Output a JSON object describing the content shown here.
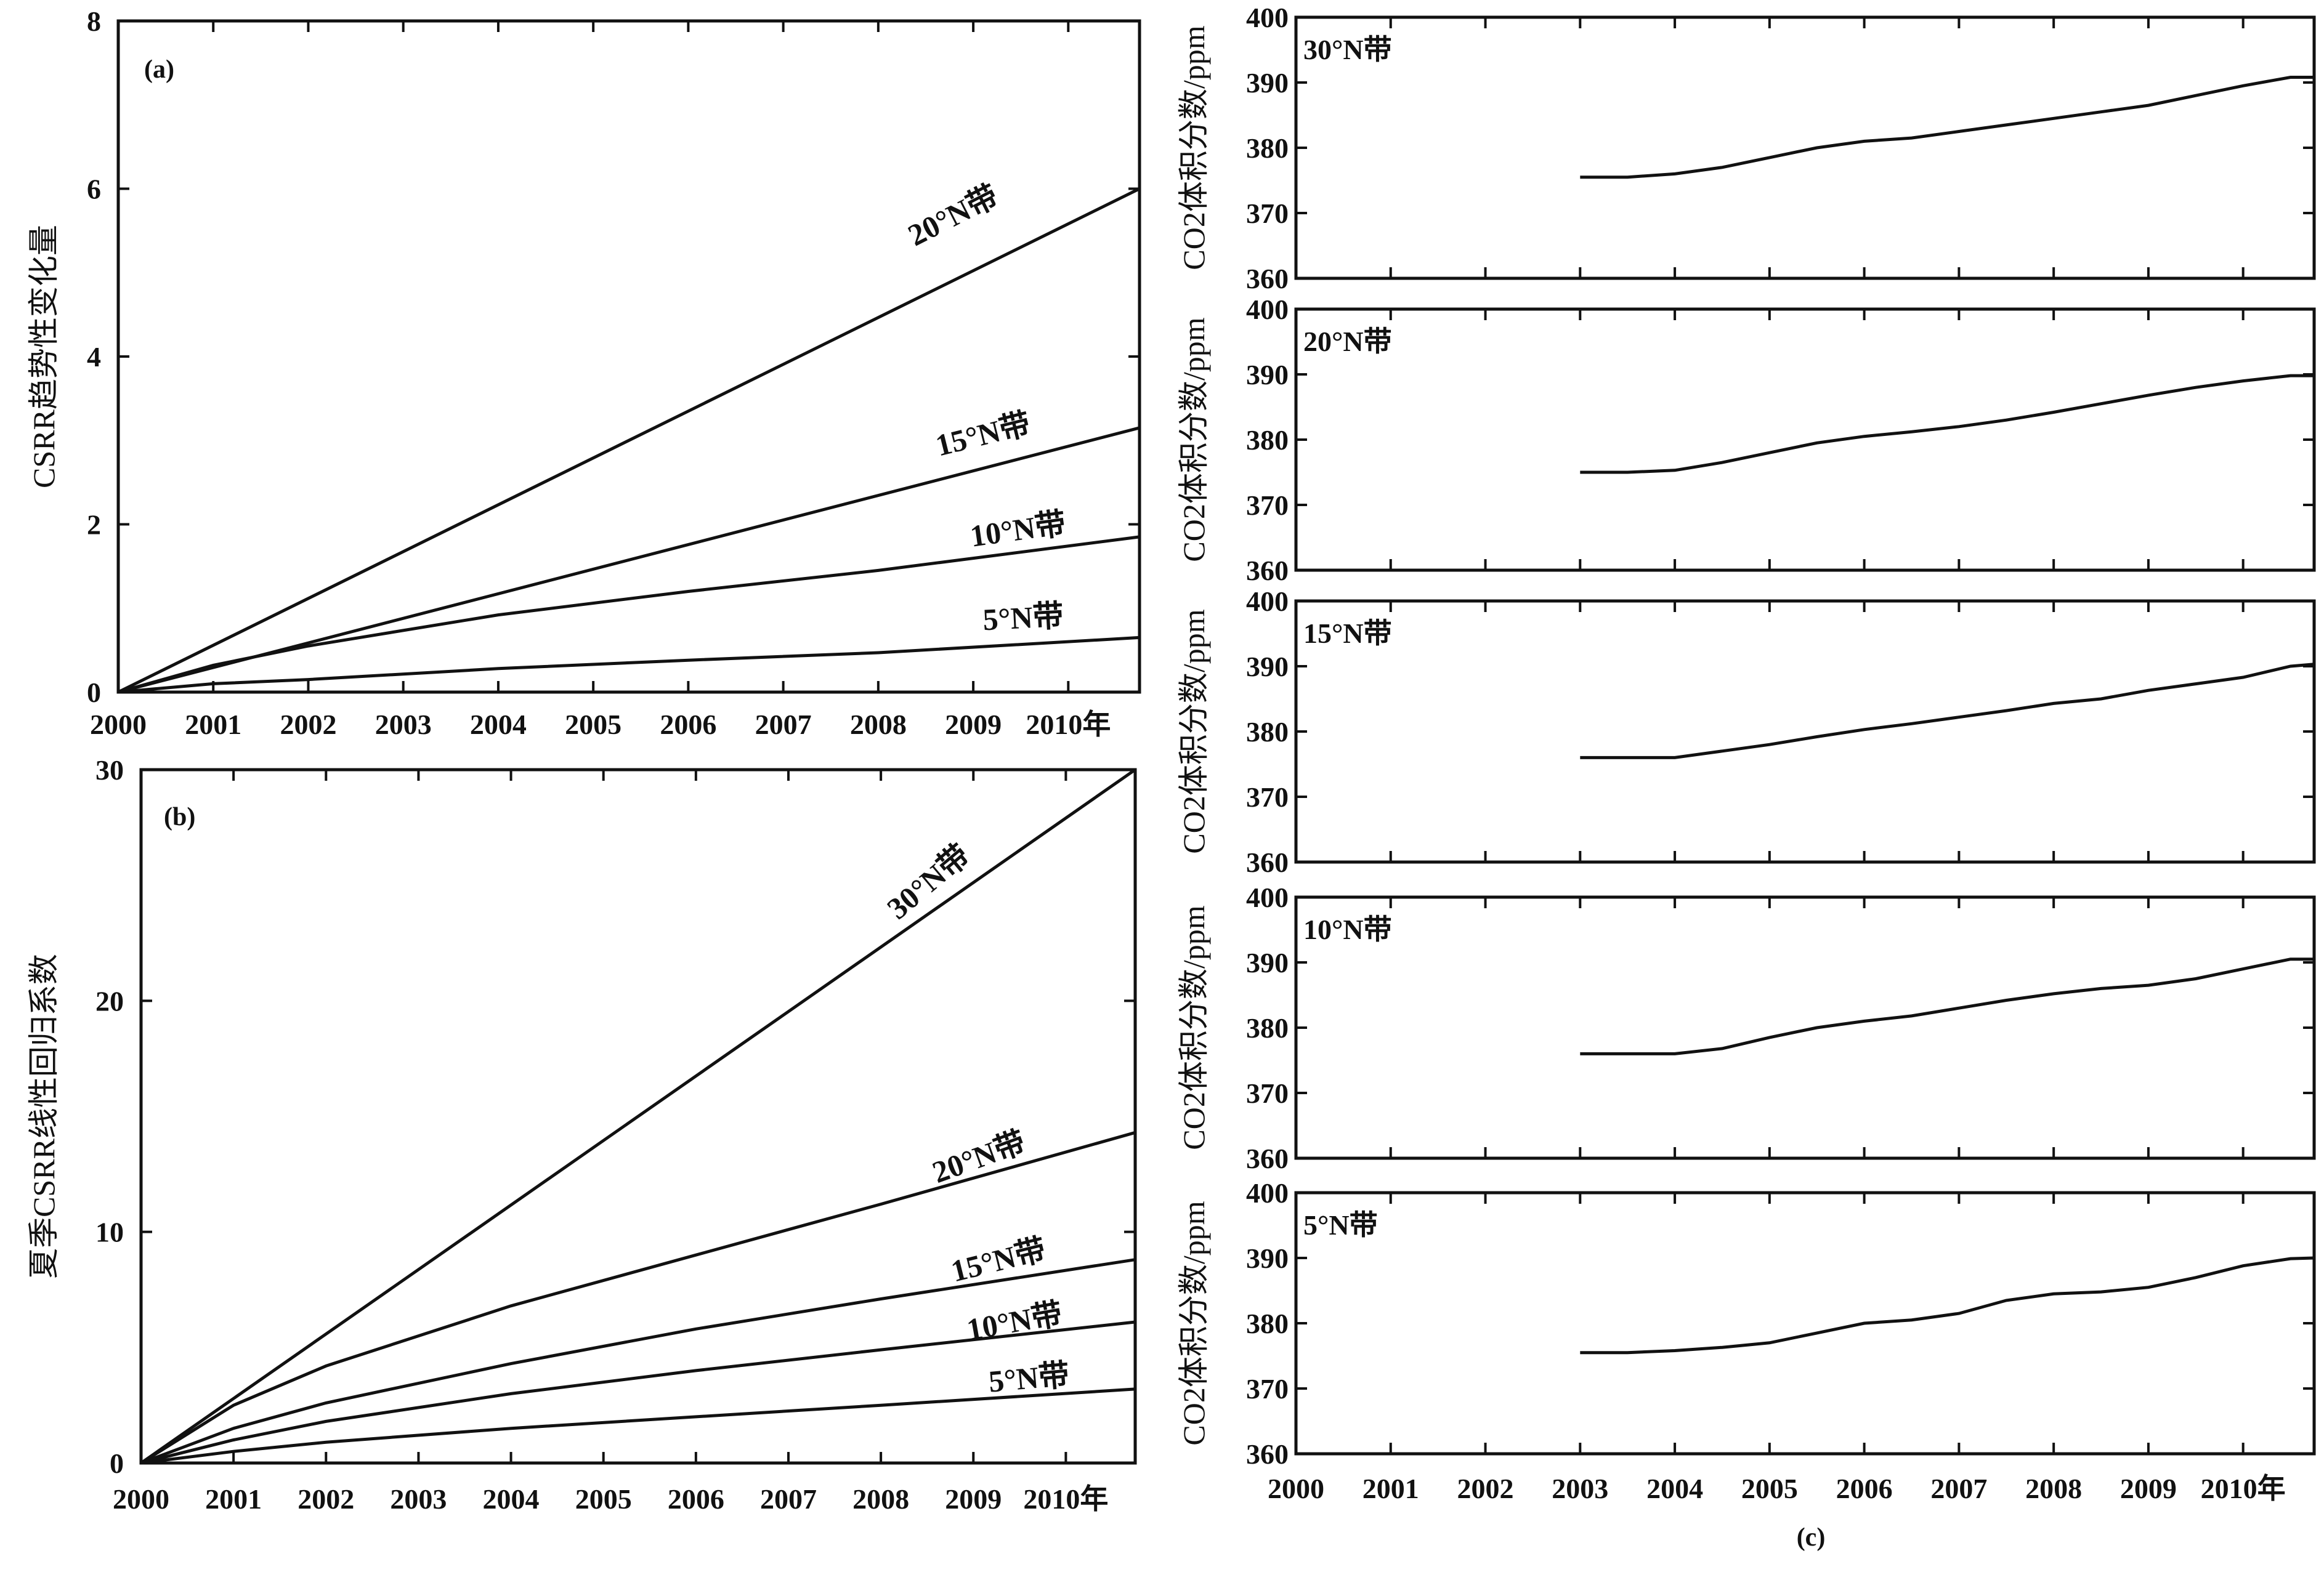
{
  "chart_data": [
    {
      "panel": "(a)",
      "type": "line",
      "ylabel": "CSRR趋势性变化量",
      "xlim": [
        2000,
        2010.75
      ],
      "ylim": [
        0,
        8
      ],
      "x_ticks": [
        2000,
        2001,
        2002,
        2003,
        2004,
        2005,
        2006,
        2007,
        2008,
        2009,
        2010
      ],
      "x_tick_labels": [
        "2000",
        "2001",
        "2002",
        "2003",
        "2004",
        "2005",
        "2006",
        "2007",
        "2008",
        "2009",
        "2010年"
      ],
      "y_ticks": [
        0,
        2,
        4,
        6,
        8
      ],
      "y_tick_labels": [
        "0",
        "2",
        "4",
        "6",
        "8"
      ],
      "series": [
        {
          "name": "20°N带",
          "x": [
            2000,
            2010.75
          ],
          "y": [
            0,
            6.0
          ]
        },
        {
          "name": "15°N带",
          "x": [
            2000,
            2010.75
          ],
          "y": [
            0,
            3.15
          ]
        },
        {
          "name": "10°N带",
          "x": [
            2000,
            2001,
            2002,
            2004,
            2006,
            2008,
            2010.75
          ],
          "y": [
            0,
            0.32,
            0.55,
            0.92,
            1.2,
            1.45,
            1.85
          ]
        },
        {
          "name": "5°N带",
          "x": [
            2000,
            2001,
            2002,
            2004,
            2006,
            2008,
            2010.75
          ],
          "y": [
            0,
            0.1,
            0.15,
            0.28,
            0.38,
            0.47,
            0.65
          ]
        }
      ]
    },
    {
      "panel": "(b)",
      "type": "line",
      "ylabel": "夏季CSRR线性回归系数",
      "xlim": [
        2000,
        2010.75
      ],
      "ylim": [
        0,
        30
      ],
      "x_ticks": [
        2000,
        2001,
        2002,
        2003,
        2004,
        2005,
        2006,
        2007,
        2008,
        2009,
        2010
      ],
      "x_tick_labels": [
        "2000",
        "2001",
        "2002",
        "2003",
        "2004",
        "2005",
        "2006",
        "2007",
        "2008",
        "2009",
        "2010年"
      ],
      "y_ticks": [
        0,
        10,
        20,
        30
      ],
      "y_tick_labels": [
        "0",
        "10",
        "20",
        "30"
      ],
      "series": [
        {
          "name": "30°N带",
          "x": [
            2000,
            2010.75
          ],
          "y": [
            0,
            30
          ]
        },
        {
          "name": "20°N带",
          "x": [
            2000,
            2001,
            2002,
            2004,
            2006,
            2008,
            2010.75
          ],
          "y": [
            0,
            2.5,
            4.2,
            6.8,
            9.0,
            11.2,
            14.3
          ]
        },
        {
          "name": "15°N带",
          "x": [
            2000,
            2001,
            2002,
            2004,
            2006,
            2008,
            2010.75
          ],
          "y": [
            0,
            1.5,
            2.6,
            4.3,
            5.8,
            7.1,
            8.8
          ]
        },
        {
          "name": "10°N带",
          "x": [
            2000,
            2001,
            2002,
            2004,
            2006,
            2008,
            2010.75
          ],
          "y": [
            0,
            1.0,
            1.8,
            3.0,
            4.0,
            4.9,
            6.1
          ]
        },
        {
          "name": "5°N带",
          "x": [
            2000,
            2001,
            2002,
            2004,
            2006,
            2008,
            2010.75
          ],
          "y": [
            0,
            0.5,
            0.9,
            1.5,
            2.0,
            2.5,
            3.2
          ]
        }
      ]
    },
    {
      "panel": "(c)",
      "type": "line",
      "ylabel": "CO2体积分数/ppm",
      "xlim": [
        2000,
        2010.75
      ],
      "ylim": [
        360,
        400
      ],
      "y_ticks": [
        360,
        370,
        380,
        390,
        400
      ],
      "y_tick_labels": [
        "360",
        "370",
        "380",
        "390",
        "400"
      ],
      "x_ticks": [
        2000,
        2001,
        2002,
        2003,
        2004,
        2005,
        2006,
        2007,
        2008,
        2009,
        2010
      ],
      "x_tick_labels": [
        "2000",
        "2001",
        "2002",
        "2003",
        "2004",
        "2005",
        "2006",
        "2007",
        "2008",
        "2009",
        "2010年"
      ],
      "subplots": [
        {
          "label": "30°N带",
          "x": [
            2003,
            2003.5,
            2004,
            2004.5,
            2005,
            2005.5,
            2006,
            2006.5,
            2007,
            2007.5,
            2008,
            2008.5,
            2009,
            2009.5,
            2010,
            2010.5,
            2010.75
          ],
          "y": [
            375.5,
            375.5,
            376,
            377,
            378.5,
            380,
            381,
            381.5,
            382.5,
            383.5,
            384.5,
            385.5,
            386.5,
            388,
            389.5,
            390.8,
            390.8
          ]
        },
        {
          "label": "20°N带",
          "x": [
            2003,
            2003.5,
            2004,
            2004.5,
            2005,
            2005.5,
            2006,
            2006.5,
            2007,
            2007.5,
            2008,
            2008.5,
            2009,
            2009.5,
            2010,
            2010.5,
            2010.75
          ],
          "y": [
            375,
            375,
            375.3,
            376.5,
            378,
            379.5,
            380.5,
            381.2,
            382,
            383,
            384.2,
            385.5,
            386.8,
            388,
            389,
            389.8,
            389.8
          ]
        },
        {
          "label": "15°N带",
          "x": [
            2003,
            2003.5,
            2004,
            2004.5,
            2005,
            2005.5,
            2006,
            2006.5,
            2007,
            2007.5,
            2008,
            2008.5,
            2009,
            2009.5,
            2010,
            2010.5,
            2010.75
          ],
          "y": [
            376,
            376,
            376,
            377,
            378,
            379.2,
            380.3,
            381.2,
            382.2,
            383.2,
            384.3,
            385,
            386.3,
            387.3,
            388.3,
            390,
            390.3
          ]
        },
        {
          "label": "10°N带",
          "x": [
            2003,
            2003.5,
            2004,
            2004.5,
            2005,
            2005.5,
            2006,
            2006.5,
            2007,
            2007.5,
            2008,
            2008.5,
            2009,
            2009.5,
            2010,
            2010.5,
            2010.75
          ],
          "y": [
            376,
            376,
            376,
            376.8,
            378.5,
            380,
            381,
            381.8,
            383,
            384.2,
            385.2,
            386,
            386.5,
            387.5,
            389,
            390.5,
            390.5
          ]
        },
        {
          "label": "5°N带",
          "x": [
            2003,
            2003.5,
            2004,
            2004.5,
            2005,
            2005.5,
            2006,
            2006.5,
            2007,
            2007.5,
            2008,
            2008.5,
            2009,
            2009.5,
            2010,
            2010.5,
            2010.75
          ],
          "y": [
            375.5,
            375.5,
            375.8,
            376.3,
            377,
            378.5,
            380,
            380.5,
            381.5,
            383.5,
            384.5,
            384.8,
            385.5,
            387,
            388.8,
            389.9,
            390
          ]
        }
      ]
    }
  ]
}
